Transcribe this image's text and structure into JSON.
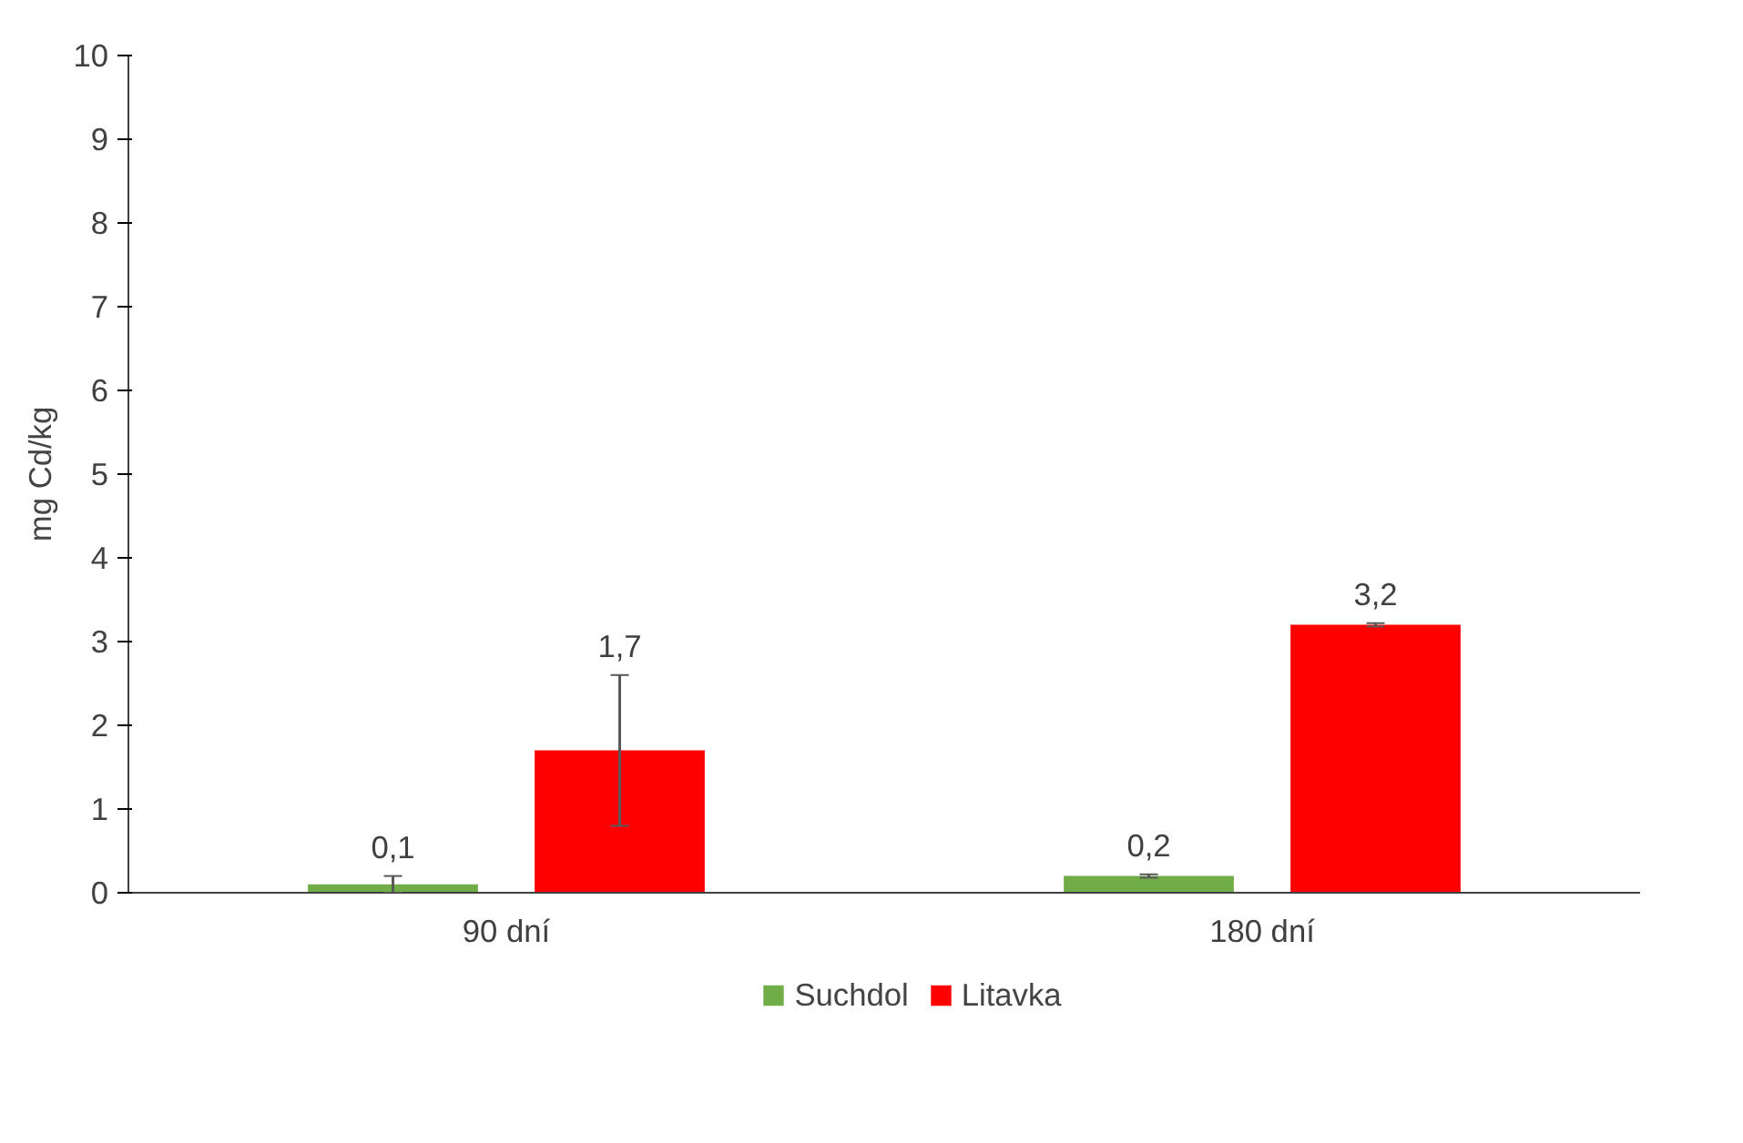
{
  "chart_data": {
    "type": "bar",
    "ylabel": "mg Cd/kg",
    "categories": [
      "90 dní",
      "180 dní"
    ],
    "series": [
      {
        "name": "Suchdol",
        "color": "#70ad47",
        "values": [
          0.1,
          0.2
        ],
        "errors": [
          0.1,
          0.02
        ],
        "value_labels": [
          "0,1",
          "0,2"
        ]
      },
      {
        "name": "Litavka",
        "color": "#ff0000",
        "values": [
          1.7,
          3.2
        ],
        "errors": [
          0.9,
          0.02
        ],
        "value_labels": [
          "1,7",
          "3,2"
        ]
      }
    ],
    "ylim": [
      0,
      10
    ],
    "yticks": [
      0,
      1,
      2,
      3,
      4,
      5,
      6,
      7,
      8,
      9,
      10
    ],
    "grid": false,
    "legend": "bottom"
  }
}
